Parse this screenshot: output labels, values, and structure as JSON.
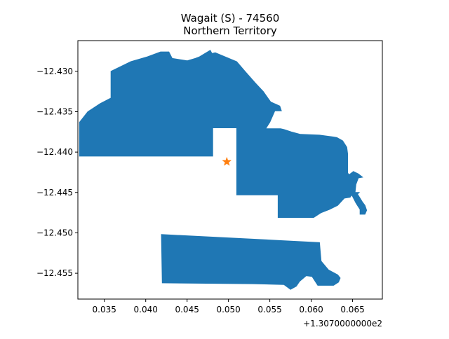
{
  "title": {
    "line1": "Wagait (S) - 74560",
    "line2": "Northern Territory"
  },
  "axes": {
    "x_offset_label": "+1.3070000000e2",
    "xlim": [
      0.0318,
      0.0686
    ],
    "ylim": [
      -12.4582,
      -12.4262
    ],
    "x_ticks": [
      {
        "value": 0.035,
        "label": "0.035"
      },
      {
        "value": 0.04,
        "label": "0.040"
      },
      {
        "value": 0.045,
        "label": "0.045"
      },
      {
        "value": 0.05,
        "label": "0.050"
      },
      {
        "value": 0.055,
        "label": "0.055"
      },
      {
        "value": 0.06,
        "label": "0.060"
      },
      {
        "value": 0.065,
        "label": "0.065"
      }
    ],
    "y_ticks": [
      {
        "value": -12.43,
        "label": "−12.430"
      },
      {
        "value": -12.435,
        "label": "−12.435"
      },
      {
        "value": -12.44,
        "label": "−12.440"
      },
      {
        "value": -12.445,
        "label": "−12.445"
      },
      {
        "value": -12.45,
        "label": "−12.450"
      },
      {
        "value": -12.455,
        "label": "−12.455"
      }
    ]
  },
  "colors": {
    "region_fill": "#1f77b4",
    "marker": "#ff7f0e"
  },
  "regions": [
    {
      "name": "north-west-block",
      "coords": [
        [
          0.032,
          -12.4405
        ],
        [
          0.032,
          -12.4363
        ],
        [
          0.033,
          -12.435
        ],
        [
          0.0345,
          -12.434
        ],
        [
          0.0358,
          -12.4333
        ],
        [
          0.0358,
          -12.43
        ],
        [
          0.0382,
          -12.4288
        ],
        [
          0.0402,
          -12.4282
        ],
        [
          0.0418,
          -12.4276
        ],
        [
          0.0428,
          -12.4276
        ],
        [
          0.0432,
          -12.4284
        ],
        [
          0.045,
          -12.4287
        ],
        [
          0.046,
          -12.4284
        ],
        [
          0.0465,
          -12.4282
        ],
        [
          0.0478,
          -12.4274
        ],
        [
          0.048,
          -12.4278
        ],
        [
          0.0484,
          -12.4277
        ],
        [
          0.051,
          -12.4288
        ],
        [
          0.052,
          -12.43
        ],
        [
          0.0532,
          -12.4314
        ],
        [
          0.0542,
          -12.4325
        ],
        [
          0.0551,
          -12.4338
        ],
        [
          0.0562,
          -12.4343
        ],
        [
          0.0564,
          -12.4349
        ],
        [
          0.0556,
          -12.4349
        ],
        [
          0.055,
          -12.4363
        ],
        [
          0.0545,
          -12.4371
        ],
        [
          0.0563,
          -12.4371
        ],
        [
          0.0567,
          -12.4372
        ],
        [
          0.0576,
          -12.4375
        ],
        [
          0.0587,
          -12.4378
        ],
        [
          0.061,
          -12.4379
        ],
        [
          0.0625,
          -12.4381
        ],
        [
          0.0631,
          -12.4382
        ],
        [
          0.0638,
          -12.4386
        ],
        [
          0.0643,
          -12.4394
        ],
        [
          0.0644,
          -12.4402
        ],
        [
          0.0644,
          -12.4417
        ],
        [
          0.0644,
          -12.4426
        ],
        [
          0.0646,
          -12.4428
        ],
        [
          0.0651,
          -12.4424
        ],
        [
          0.0657,
          -12.4427
        ],
        [
          0.0662,
          -12.4431
        ],
        [
          0.0657,
          -12.4432
        ],
        [
          0.0654,
          -12.444
        ],
        [
          0.0653,
          -12.445
        ],
        [
          0.0658,
          -12.445
        ],
        [
          0.0656,
          -12.4452
        ],
        [
          0.0659,
          -12.4457
        ],
        [
          0.0662,
          -12.4462
        ],
        [
          0.0665,
          -12.4466
        ],
        [
          0.0667,
          -12.4472
        ],
        [
          0.0665,
          -12.4477
        ],
        [
          0.0659,
          -12.4477
        ],
        [
          0.0659,
          -12.4471
        ],
        [
          0.0654,
          -12.4463
        ],
        [
          0.0649,
          -12.4453
        ],
        [
          0.0647,
          -12.4456
        ],
        [
          0.064,
          -12.4457
        ],
        [
          0.0632,
          -12.4466
        ],
        [
          0.0622,
          -12.4471
        ],
        [
          0.0612,
          -12.4475
        ],
        [
          0.0603,
          -12.4481
        ],
        [
          0.056,
          -12.4481
        ],
        [
          0.056,
          -12.4453
        ],
        [
          0.051,
          -12.4453
        ],
        [
          0.051,
          -12.437
        ],
        [
          0.0481,
          -12.437
        ],
        [
          0.0481,
          -12.4405
        ]
      ]
    },
    {
      "name": "south-block",
      "coords": [
        [
          0.0419,
          -12.4502
        ],
        [
          0.042,
          -12.4562
        ],
        [
          0.053,
          -12.4563
        ],
        [
          0.0567,
          -12.4564
        ],
        [
          0.0575,
          -12.457
        ],
        [
          0.0582,
          -12.4566
        ],
        [
          0.0586,
          -12.456
        ],
        [
          0.0594,
          -12.4553
        ],
        [
          0.0601,
          -12.4554
        ],
        [
          0.0608,
          -12.4565
        ],
        [
          0.0627,
          -12.4565
        ],
        [
          0.0633,
          -12.4561
        ],
        [
          0.0635,
          -12.4556
        ],
        [
          0.0632,
          -12.4552
        ],
        [
          0.0621,
          -12.4546
        ],
        [
          0.0612,
          -12.4535
        ],
        [
          0.061,
          -12.4512
        ]
      ]
    }
  ],
  "marker": {
    "name": "star",
    "coords": [
      0.0498,
      -12.4412
    ]
  }
}
